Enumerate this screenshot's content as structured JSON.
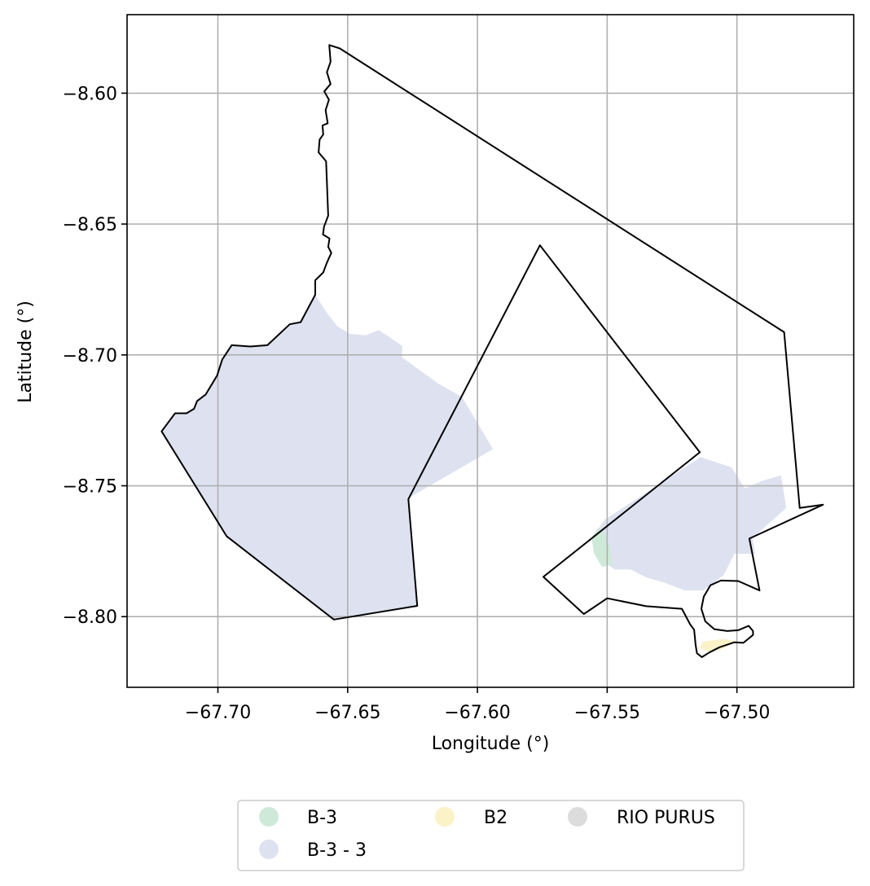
{
  "chart_data": {
    "type": "map",
    "title": "",
    "xlabel": "Longitude (°)",
    "ylabel": "Latitude (°)",
    "xlim": [
      -67.735,
      -67.455
    ],
    "ylim": [
      -8.827,
      -8.57
    ],
    "grid": true,
    "x_ticks": [
      {
        "value": -67.7,
        "label": "−67.70"
      },
      {
        "value": -67.65,
        "label": "−67.65"
      },
      {
        "value": -67.6,
        "label": "−67.60"
      },
      {
        "value": -67.55,
        "label": "−67.55"
      },
      {
        "value": -67.5,
        "label": "−67.50"
      }
    ],
    "y_ticks": [
      {
        "value": -8.6,
        "label": "−8.60"
      },
      {
        "value": -8.65,
        "label": "−8.65"
      },
      {
        "value": -8.7,
        "label": "−8.70"
      },
      {
        "value": -8.75,
        "label": "−8.75"
      },
      {
        "value": -8.8,
        "label": "−8.80"
      }
    ],
    "legend": {
      "placement": "bottom-center",
      "columns": 3,
      "entries": [
        {
          "name": "B-3",
          "color": "#cfe9d9"
        },
        {
          "name": "B-3 - 3",
          "color": "#dee2f0"
        },
        {
          "name": "B2",
          "color": "#fbf2c8"
        },
        {
          "name": "RIO PURUS",
          "color": "#dcdcdc"
        }
      ]
    },
    "filled_areas": [
      {
        "name": "B-3 - 3",
        "color": "#dee2f0",
        "coords": [
          [
            -67.6625,
            -8.677
          ],
          [
            -67.658,
            -8.684
          ],
          [
            -67.654,
            -8.689
          ],
          [
            -67.649,
            -8.692
          ],
          [
            -67.643,
            -8.6925
          ],
          [
            -67.638,
            -8.6905
          ],
          [
            -67.629,
            -8.6965
          ],
          [
            -67.629,
            -8.701
          ],
          [
            -67.615,
            -8.711
          ],
          [
            -67.606,
            -8.716
          ],
          [
            -67.594,
            -8.736
          ],
          [
            -67.627,
            -8.755
          ],
          [
            -67.6232,
            -8.7959
          ],
          [
            -67.6553,
            -8.8011
          ],
          [
            -67.6966,
            -8.7693
          ],
          [
            -67.7217,
            -8.7292
          ],
          [
            -67.7165,
            -8.7223
          ],
          [
            -67.7121,
            -8.7223
          ],
          [
            -67.7092,
            -8.7206
          ],
          [
            -67.708,
            -8.7176
          ],
          [
            -67.7047,
            -8.7151
          ],
          [
            -67.7003,
            -8.7079
          ],
          [
            -67.6983,
            -8.7017
          ],
          [
            -67.6947,
            -8.6963
          ],
          [
            -67.6875,
            -8.6968
          ],
          [
            -67.6809,
            -8.6963
          ],
          [
            -67.6723,
            -8.6883
          ],
          [
            -67.6681,
            -8.6875
          ],
          [
            -67.6625,
            -8.677
          ]
        ]
      },
      {
        "name": "B-3 - 3",
        "color": "#dee2f0",
        "coords": [
          [
            -67.551,
            -8.763
          ],
          [
            -67.514,
            -8.739
          ],
          [
            -67.502,
            -8.743
          ],
          [
            -67.497,
            -8.751
          ],
          [
            -67.49,
            -8.748
          ],
          [
            -67.483,
            -8.746
          ],
          [
            -67.481,
            -8.7585
          ],
          [
            -67.494,
            -8.77
          ],
          [
            -67.493,
            -8.776
          ],
          [
            -67.501,
            -8.776
          ],
          [
            -67.505,
            -8.784
          ],
          [
            -67.51,
            -8.788
          ],
          [
            -67.513,
            -8.79
          ],
          [
            -67.52,
            -8.79
          ],
          [
            -67.528,
            -8.787
          ],
          [
            -67.535,
            -8.785
          ],
          [
            -67.541,
            -8.782
          ],
          [
            -67.547,
            -8.782
          ],
          [
            -67.55,
            -8.78
          ],
          [
            -67.553,
            -8.776
          ],
          [
            -67.556,
            -8.77
          ],
          [
            -67.551,
            -8.763
          ]
        ]
      },
      {
        "name": "B-3",
        "color": "#cfe9d9",
        "coords": [
          [
            -67.5535,
            -8.766
          ],
          [
            -67.551,
            -8.768
          ],
          [
            -67.549,
            -8.773
          ],
          [
            -67.548,
            -8.78
          ],
          [
            -67.552,
            -8.781
          ],
          [
            -67.555,
            -8.776
          ],
          [
            -67.556,
            -8.77
          ],
          [
            -67.5535,
            -8.766
          ]
        ]
      },
      {
        "name": "B2",
        "color": "#fbf2c8",
        "coords": [
          [
            -67.513,
            -8.8095
          ],
          [
            -67.505,
            -8.8085
          ],
          [
            -67.5,
            -8.8095
          ],
          [
            -67.506,
            -8.8125
          ],
          [
            -67.51,
            -8.8135
          ],
          [
            -67.5145,
            -8.812
          ],
          [
            -67.513,
            -8.8095
          ]
        ]
      }
    ],
    "boundaries": [
      {
        "name": "",
        "coords": [
          [
            -67.6571,
            -8.5816
          ],
          [
            -67.653,
            -8.5829
          ],
          [
            -67.4818,
            -8.6913
          ],
          [
            -67.4758,
            -8.7585
          ],
          [
            -67.4668,
            -8.7572
          ],
          [
            -67.4952,
            -8.7702
          ],
          [
            -67.4913,
            -8.79
          ],
          [
            -67.4995,
            -8.7864
          ],
          [
            -67.5062,
            -8.7862
          ],
          [
            -67.5102,
            -8.788
          ],
          [
            -67.5128,
            -8.7924
          ],
          [
            -67.5137,
            -8.797
          ],
          [
            -67.5122,
            -8.8018
          ],
          [
            -67.5087,
            -8.8048
          ],
          [
            -67.5037,
            -8.8055
          ],
          [
            -67.4995,
            -8.8052
          ],
          [
            -67.4955,
            -8.8035
          ],
          [
            -67.4938,
            -8.8055
          ],
          [
            -67.4938,
            -8.807
          ],
          [
            -67.4975,
            -8.81
          ],
          [
            -67.501,
            -8.8098
          ],
          [
            -67.5067,
            -8.8117
          ],
          [
            -67.5107,
            -8.8137
          ],
          [
            -67.5135,
            -8.8155
          ],
          [
            -67.5154,
            -8.814
          ],
          [
            -67.5159,
            -8.811
          ],
          [
            -67.5165,
            -8.805
          ],
          [
            -67.518,
            -8.803
          ],
          [
            -67.5212,
            -8.797
          ],
          [
            -67.535,
            -8.796
          ],
          [
            -67.55,
            -8.793
          ],
          [
            -67.559,
            -8.799
          ],
          [
            -67.5746,
            -8.7848
          ],
          [
            -67.5143,
            -8.7372
          ],
          [
            -67.5759,
            -8.6581
          ],
          [
            -67.6266,
            -8.7551
          ],
          [
            -67.6232,
            -8.7959
          ],
          [
            -67.6553,
            -8.8011
          ],
          [
            -67.6966,
            -8.7693
          ],
          [
            -67.7217,
            -8.7292
          ],
          [
            -67.7165,
            -8.7223
          ],
          [
            -67.7121,
            -8.7223
          ],
          [
            -67.7092,
            -8.7206
          ],
          [
            -67.708,
            -8.7176
          ],
          [
            -67.7047,
            -8.7151
          ],
          [
            -67.7003,
            -8.7079
          ],
          [
            -67.6983,
            -8.7017
          ],
          [
            -67.6947,
            -8.6963
          ],
          [
            -67.6875,
            -8.6968
          ],
          [
            -67.6809,
            -8.6963
          ],
          [
            -67.6723,
            -8.6883
          ],
          [
            -67.6681,
            -8.6875
          ],
          [
            -67.6625,
            -8.677
          ],
          [
            -67.6625,
            -8.6715
          ],
          [
            -67.6594,
            -8.6685
          ],
          [
            -67.6581,
            -8.665
          ],
          [
            -67.6563,
            -8.661
          ],
          [
            -67.6575,
            -8.6587
          ],
          [
            -67.657,
            -8.6555
          ],
          [
            -67.6595,
            -8.654
          ],
          [
            -67.6591,
            -8.651
          ],
          [
            -67.6575,
            -8.6468
          ],
          [
            -67.6583,
            -8.626
          ],
          [
            -67.6612,
            -8.6226
          ],
          [
            -67.6608,
            -8.6177
          ],
          [
            -67.6594,
            -8.6158
          ],
          [
            -67.6597,
            -8.6123
          ],
          [
            -67.6577,
            -8.6115
          ],
          [
            -67.6585,
            -8.6065
          ],
          [
            -67.6572,
            -8.6025
          ],
          [
            -67.659,
            -8.5993
          ],
          [
            -67.6566,
            -8.5965
          ],
          [
            -67.658,
            -8.592
          ],
          [
            -67.6566,
            -8.588
          ],
          [
            -67.6571,
            -8.5816
          ]
        ]
      }
    ]
  }
}
